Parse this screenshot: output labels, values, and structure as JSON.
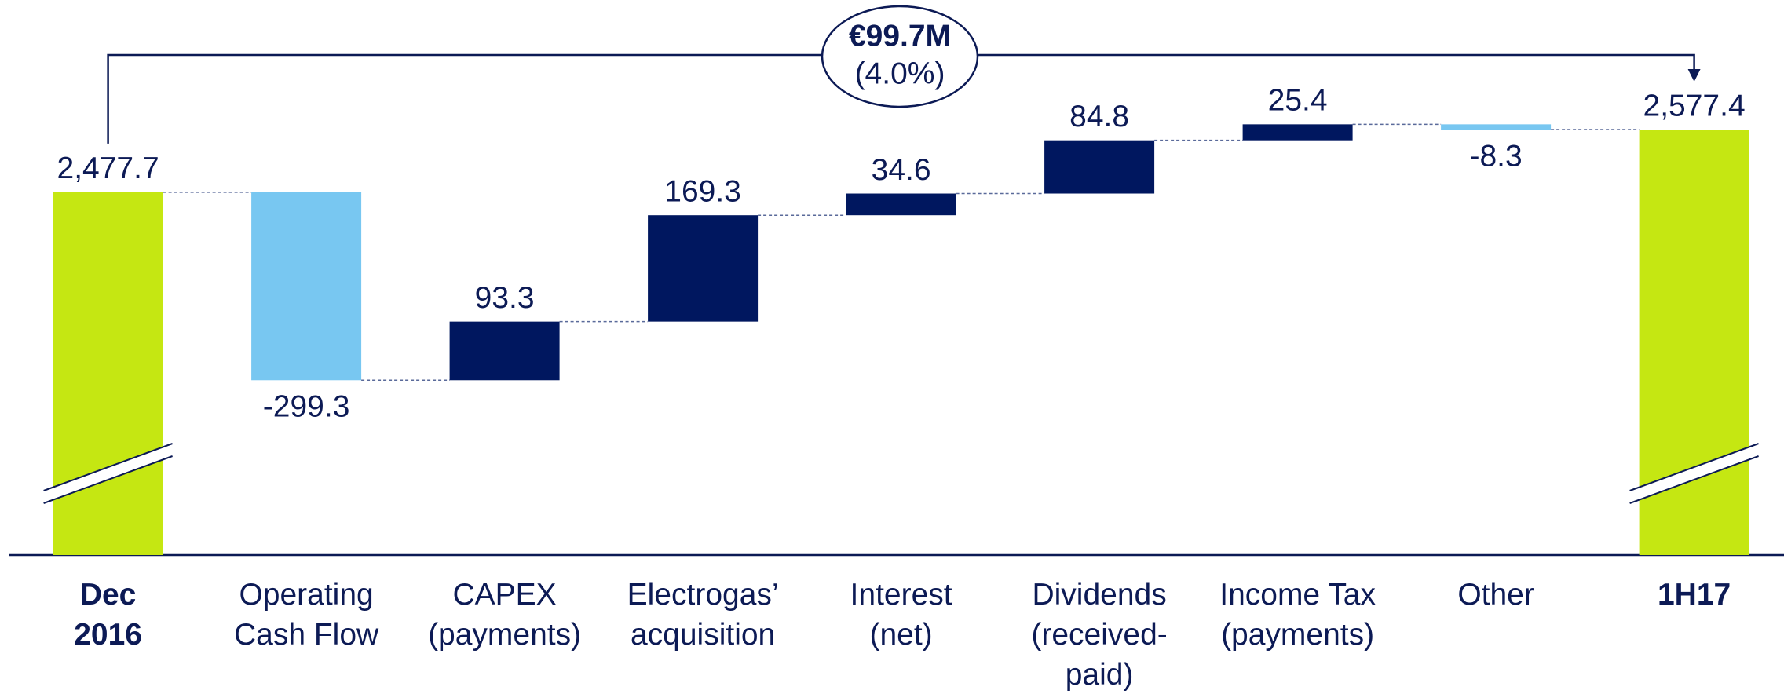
{
  "chart_data": {
    "type": "waterfall",
    "categories": [
      "Dec\n2016",
      "Operating\nCash Flow",
      "CAPEX\n(payments)",
      "Electrogas’\nacquisition",
      "Interest\n(net)",
      "Dividends\n(received-\npaid)",
      "Income Tax\n(payments)",
      "Other",
      "1H17"
    ],
    "values": [
      2477.7,
      -299.3,
      93.3,
      169.3,
      34.6,
      84.8,
      25.4,
      -8.3,
      2577.4
    ],
    "value_labels": [
      "2,477.7",
      "-299.3",
      "93.3",
      "169.3",
      "34.6",
      "84.8",
      "25.4",
      "-8.3",
      "2,577.4"
    ],
    "total_color": "#c5e712",
    "increase_color": "#00175f",
    "decrease_color": "#78c7f1",
    "ylim": [
      1900,
      2700
    ],
    "axis_break": true,
    "annotation": {
      "text": "€99.7M",
      "subtext": "(4.0%)"
    }
  }
}
